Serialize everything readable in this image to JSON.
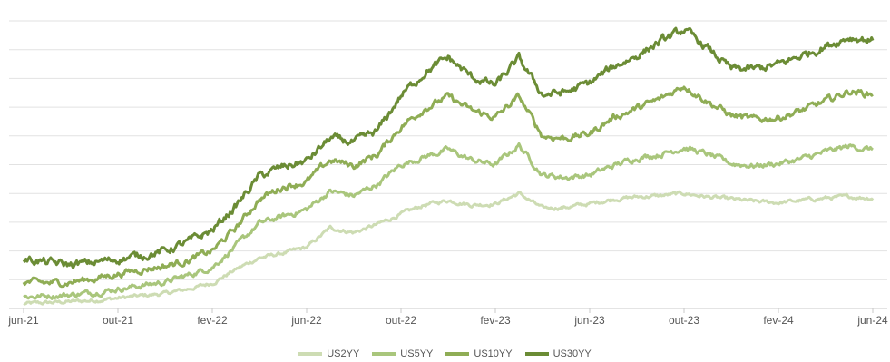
{
  "chart_data": {
    "type": "line",
    "title": "",
    "xlabel": "",
    "ylabel": "",
    "x_ticks": [
      "jun-21",
      "out-21",
      "fev-22",
      "jun-22",
      "out-22",
      "fev-23",
      "jun-23",
      "out-23",
      "fev-24",
      "jun-24"
    ],
    "x_range": [
      "jun-21",
      "jun-24"
    ],
    "y_grid_lines": 10,
    "y_axis_labels_visible": false,
    "grid": true,
    "legend_position": "bottom",
    "note": "",
    "series": [
      {
        "name": "US2YY",
        "color": "#cddcb3",
        "points": [
          [
            "2021-06",
            0.4
          ],
          [
            "2021-07",
            0.5
          ],
          [
            "2021-08",
            0.6
          ],
          [
            "2021-09",
            0.7
          ],
          [
            "2021-10",
            0.9
          ],
          [
            "2021-11",
            1.1
          ],
          [
            "2021-12",
            1.3
          ],
          [
            "2022-01",
            1.7
          ],
          [
            "2022-02",
            2.2
          ],
          [
            "2022-03",
            3.4
          ],
          [
            "2022-04",
            4.4
          ],
          [
            "2022-05",
            4.8
          ],
          [
            "2022-06",
            5.3
          ],
          [
            "2022-07",
            7.0
          ],
          [
            "2022-08",
            6.6
          ],
          [
            "2022-09",
            7.3
          ],
          [
            "2022-10",
            8.2
          ],
          [
            "2022-11",
            9.0
          ],
          [
            "2022-12",
            9.4
          ],
          [
            "2023-01",
            9.0
          ],
          [
            "2023-02",
            9.1
          ],
          [
            "2023-03",
            10.0
          ],
          [
            "2023-04",
            8.7
          ],
          [
            "2023-05",
            8.8
          ],
          [
            "2023-06",
            9.1
          ],
          [
            "2023-07",
            9.5
          ],
          [
            "2023-08",
            9.7
          ],
          [
            "2023-09",
            9.8
          ],
          [
            "2023-10",
            10.0
          ],
          [
            "2023-11",
            9.7
          ],
          [
            "2023-12",
            9.5
          ],
          [
            "2024-01",
            9.3
          ],
          [
            "2024-02",
            9.2
          ],
          [
            "2024-03",
            9.4
          ],
          [
            "2024-04",
            9.6
          ],
          [
            "2024-05",
            9.7
          ],
          [
            "2024-06",
            9.6
          ]
        ]
      },
      {
        "name": "US5YY",
        "color": "#a9c67c",
        "points": [
          [
            "2021-06",
            1.0
          ],
          [
            "2021-07",
            1.1
          ],
          [
            "2021-08",
            1.2
          ],
          [
            "2021-09",
            1.4
          ],
          [
            "2021-10",
            1.7
          ],
          [
            "2021-11",
            2.0
          ],
          [
            "2021-12",
            2.3
          ],
          [
            "2022-01",
            2.9
          ],
          [
            "2022-02",
            3.6
          ],
          [
            "2022-03",
            5.4
          ],
          [
            "2022-04",
            7.4
          ],
          [
            "2022-05",
            8.0
          ],
          [
            "2022-06",
            8.6
          ],
          [
            "2022-07",
            10.2
          ],
          [
            "2022-08",
            9.8
          ],
          [
            "2022-09",
            10.8
          ],
          [
            "2022-10",
            12.5
          ],
          [
            "2022-11",
            13.2
          ],
          [
            "2022-12",
            13.8
          ],
          [
            "2023-01",
            12.9
          ],
          [
            "2023-02",
            12.5
          ],
          [
            "2023-03",
            14.2
          ],
          [
            "2023-04",
            11.6
          ],
          [
            "2023-05",
            11.4
          ],
          [
            "2023-06",
            11.6
          ],
          [
            "2023-07",
            12.4
          ],
          [
            "2023-08",
            13.1
          ],
          [
            "2023-09",
            13.4
          ],
          [
            "2023-10",
            14.0
          ],
          [
            "2023-11",
            13.4
          ],
          [
            "2023-12",
            12.6
          ],
          [
            "2024-01",
            12.4
          ],
          [
            "2024-02",
            12.6
          ],
          [
            "2024-03",
            13.0
          ],
          [
            "2024-04",
            13.6
          ],
          [
            "2024-05",
            14.1
          ],
          [
            "2024-06",
            13.8
          ]
        ]
      },
      {
        "name": "US10YY",
        "color": "#8fad55",
        "points": [
          [
            "2021-06",
            2.3
          ],
          [
            "2021-07",
            2.2
          ],
          [
            "2021-08",
            2.3
          ],
          [
            "2021-09",
            2.6
          ],
          [
            "2021-10",
            3.0
          ],
          [
            "2021-11",
            3.4
          ],
          [
            "2021-12",
            3.7
          ],
          [
            "2022-01",
            4.2
          ],
          [
            "2022-02",
            5.0
          ],
          [
            "2022-03",
            7.0
          ],
          [
            "2022-04",
            9.5
          ],
          [
            "2022-05",
            10.6
          ],
          [
            "2022-06",
            11.0
          ],
          [
            "2022-07",
            12.9
          ],
          [
            "2022-08",
            12.4
          ],
          [
            "2022-09",
            13.4
          ],
          [
            "2022-10",
            15.8
          ],
          [
            "2022-11",
            17.4
          ],
          [
            "2022-12",
            18.4
          ],
          [
            "2023-01",
            17.2
          ],
          [
            "2023-02",
            16.6
          ],
          [
            "2023-03",
            18.4
          ],
          [
            "2023-04",
            15.0
          ],
          [
            "2023-05",
            14.8
          ],
          [
            "2023-06",
            15.2
          ],
          [
            "2023-07",
            16.6
          ],
          [
            "2023-08",
            17.4
          ],
          [
            "2023-09",
            18.2
          ],
          [
            "2023-10",
            19.4
          ],
          [
            "2023-11",
            18.0
          ],
          [
            "2023-12",
            16.8
          ],
          [
            "2024-01",
            16.4
          ],
          [
            "2024-02",
            16.6
          ],
          [
            "2024-03",
            17.2
          ],
          [
            "2024-04",
            18.0
          ],
          [
            "2024-05",
            18.9
          ],
          [
            "2024-06",
            18.6
          ]
        ]
      },
      {
        "name": "US30YY",
        "color": "#6b8c35",
        "points": [
          [
            "2021-06",
            4.3
          ],
          [
            "2021-07",
            4.0
          ],
          [
            "2021-08",
            3.8
          ],
          [
            "2021-09",
            4.0
          ],
          [
            "2021-10",
            4.3
          ],
          [
            "2021-11",
            4.6
          ],
          [
            "2021-12",
            5.0
          ],
          [
            "2022-01",
            5.8
          ],
          [
            "2022-02",
            6.8
          ],
          [
            "2022-03",
            8.9
          ],
          [
            "2022-04",
            11.5
          ],
          [
            "2022-05",
            12.3
          ],
          [
            "2022-06",
            12.8
          ],
          [
            "2022-07",
            14.8
          ],
          [
            "2022-08",
            14.4
          ],
          [
            "2022-09",
            15.4
          ],
          [
            "2022-10",
            18.5
          ],
          [
            "2022-11",
            20.5
          ],
          [
            "2022-12",
            21.8
          ],
          [
            "2023-01",
            20.1
          ],
          [
            "2023-02",
            19.4
          ],
          [
            "2023-03",
            21.7
          ],
          [
            "2023-04",
            18.6
          ],
          [
            "2023-05",
            18.8
          ],
          [
            "2023-06",
            19.6
          ],
          [
            "2023-07",
            21.0
          ],
          [
            "2023-08",
            22.0
          ],
          [
            "2023-09",
            23.2
          ],
          [
            "2023-10",
            24.2
          ],
          [
            "2023-11",
            22.6
          ],
          [
            "2023-12",
            20.8
          ],
          [
            "2024-01",
            20.8
          ],
          [
            "2024-02",
            21.2
          ],
          [
            "2024-03",
            22.0
          ],
          [
            "2024-04",
            22.8
          ],
          [
            "2024-05",
            23.6
          ],
          [
            "2024-06",
            23.3
          ]
        ]
      }
    ]
  }
}
